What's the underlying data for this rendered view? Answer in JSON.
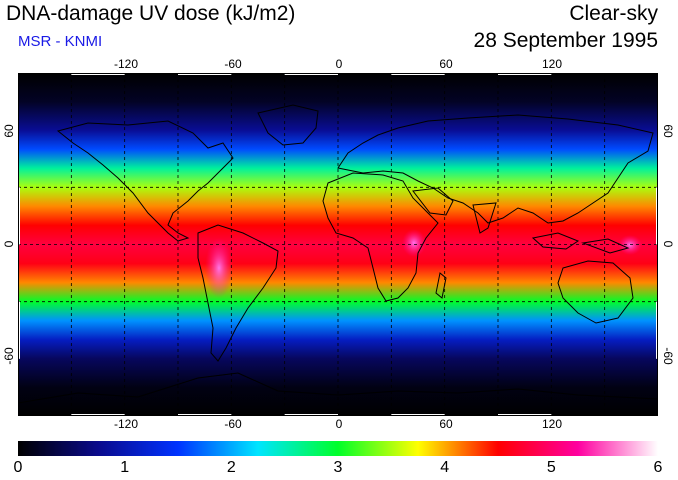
{
  "header": {
    "title": "DNA-damage UV dose (kJ/m2)",
    "subtitle": "MSR - KNMI",
    "mode": "Clear-sky",
    "date": "28 September 1995"
  },
  "map": {
    "projection": "equirectangular",
    "lon_range": [
      -180,
      180
    ],
    "lat_range": [
      -90,
      90
    ],
    "lon_ticks": [
      "-120",
      "-60",
      "0",
      "60",
      "120"
    ],
    "lat_ticks": [
      "60",
      "0",
      "-60"
    ],
    "graticule": "dashed, every 30 degrees"
  },
  "colorbar": {
    "labels": [
      "0",
      "1",
      "2",
      "3",
      "4",
      "5",
      "6"
    ],
    "min": 0,
    "max": 6,
    "stops": [
      "#000000",
      "#0a0a8c",
      "#0033ff",
      "#00e5ff",
      "#00ff2a",
      "#ffff00",
      "#ff0000",
      "#ff00a0",
      "#ffffff"
    ]
  },
  "chart_data": {
    "type": "heatmap",
    "title": "DNA-damage UV dose (kJ/m2)",
    "quantity_range": [
      0,
      6
    ],
    "profile_by_latitude": [
      {
        "lat": 90,
        "dose": 0.0
      },
      {
        "lat": 75,
        "dose": 0.2
      },
      {
        "lat": 60,
        "dose": 0.8
      },
      {
        "lat": 50,
        "dose": 1.6
      },
      {
        "lat": 40,
        "dose": 2.6
      },
      {
        "lat": 30,
        "dose": 3.5
      },
      {
        "lat": 20,
        "dose": 4.1
      },
      {
        "lat": 10,
        "dose": 4.5
      },
      {
        "lat": 0,
        "dose": 4.8
      },
      {
        "lat": -10,
        "dose": 4.6
      },
      {
        "lat": -20,
        "dose": 4.1
      },
      {
        "lat": -30,
        "dose": 3.0
      },
      {
        "lat": -40,
        "dose": 1.9
      },
      {
        "lat": -50,
        "dose": 1.1
      },
      {
        "lat": -60,
        "dose": 0.5
      },
      {
        "lat": -75,
        "dose": 0.1
      },
      {
        "lat": -90,
        "dose": 0.0
      }
    ]
  }
}
